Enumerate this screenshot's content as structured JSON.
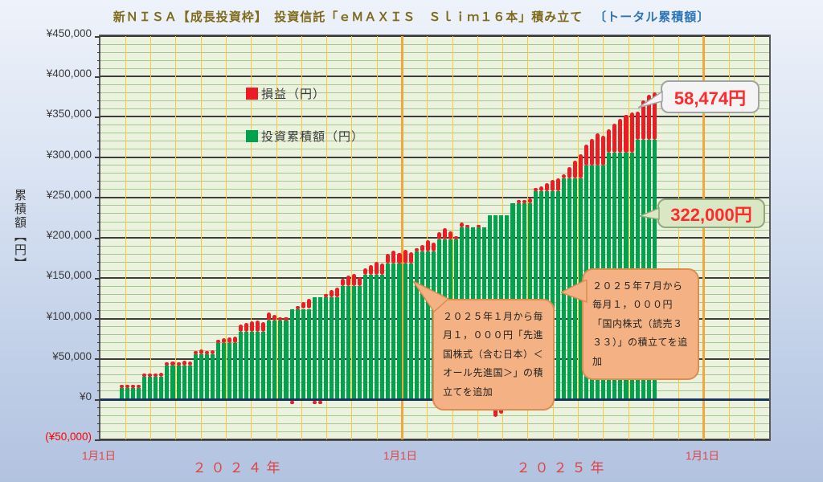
{
  "title": {
    "main": "新ＮＩＳＡ【成長投資枠】　投資信託「ｅＭＡＸＩＳ　Ｓｌｉｍ１６本」積み立て",
    "suffix": "〔トータル累積額〕"
  },
  "y_axis": {
    "title": "累積額【円】",
    "ticks": [
      {
        "v": 450000,
        "label": "¥450,000"
      },
      {
        "v": 400000,
        "label": "¥400,000"
      },
      {
        "v": 350000,
        "label": "¥350,000"
      },
      {
        "v": 300000,
        "label": "¥300,000"
      },
      {
        "v": 250000,
        "label": "¥250,000"
      },
      {
        "v": 200000,
        "label": "¥200,000"
      },
      {
        "v": 150000,
        "label": "¥150,000"
      },
      {
        "v": 100000,
        "label": "¥100,000"
      },
      {
        "v": 50000,
        "label": "¥50,000"
      },
      {
        "v": 0,
        "label": "¥0"
      },
      {
        "v": -50000,
        "label": "(¥50,000)",
        "negative": true
      }
    ],
    "max": 450000,
    "min": -50000,
    "major_step": 50000,
    "minor_step": 10000
  },
  "x_axis": {
    "jan1_labels": [
      "1月1日",
      "1月1日",
      "1月1日"
    ],
    "year_labels": [
      "２０２４年",
      "２０２５年"
    ]
  },
  "legend": {
    "items": [
      {
        "label": "損益（円）",
        "color": "#ea1c24"
      },
      {
        "label": "投資累積額（円）",
        "color": "#00a24d"
      }
    ]
  },
  "callouts": {
    "profit_value": "58,474円",
    "invested_value": "322,000円",
    "note_jan2025": "２０２５年１月から毎月１，０００円「先進国株式（含む日本）＜オール先進国＞」の積立てを追加",
    "note_jul2025": "２０２５年７月から毎月１，０００円「国内株式（読売３３３）」の積立てを追加"
  },
  "colors": {
    "profit": "#ea1c24",
    "invested": "#00a24d",
    "plot_bg": "#ebf2de",
    "minor_grid": "#a6c496",
    "major_grid": "#3d3d3d",
    "month_grid": "#ffc932",
    "zero_line": "#17365d",
    "axis_label_red": "#e04444"
  },
  "chart_data": {
    "type": "bar",
    "stacked": true,
    "period": "weekly, 2024-01 through 2025-10",
    "series_names": [
      "投資累積額（円）",
      "損益（円）"
    ],
    "final_invested": 322000,
    "final_profit": 58474,
    "final_total": 380474,
    "ylim": [
      -50000,
      450000
    ],
    "months": [
      {
        "label": "2024-01",
        "invested": 14000,
        "weekly_profit": [
          2000,
          3500,
          3000,
          3500
        ]
      },
      {
        "label": "2024-02",
        "invested": 28000,
        "weekly_profit": [
          2500,
          4000,
          3000,
          4500
        ]
      },
      {
        "label": "2024-03",
        "invested": 42000,
        "weekly_profit": [
          3000,
          5000,
          4000,
          5500,
          4500
        ]
      },
      {
        "label": "2024-04",
        "invested": 56000,
        "weekly_profit": [
          4000,
          6000,
          3500,
          5000
        ]
      },
      {
        "label": "2024-05",
        "invested": 70000,
        "weekly_profit": [
          3500,
          5500,
          7000,
          8000
        ]
      },
      {
        "label": "2024-06",
        "invested": 84000,
        "weekly_profit": [
          9000,
          11000,
          13000,
          14000,
          12000
        ]
      },
      {
        "label": "2024-07",
        "invested": 98000,
        "weekly_profit": [
          10000,
          7000,
          4000,
          1500
        ]
      },
      {
        "label": "2024-08",
        "invested": 112000,
        "weekly_profit": [
          -2500,
          3000,
          8000,
          12000
        ]
      },
      {
        "label": "2024-09",
        "invested": 126000,
        "weekly_profit": [
          -2000,
          -3500,
          4000,
          9000,
          12000
        ]
      },
      {
        "label": "2024-10",
        "invested": 140000,
        "weekly_profit": [
          9000,
          13000,
          15000,
          11000
        ]
      },
      {
        "label": "2024-11",
        "invested": 154000,
        "weekly_profit": [
          8000,
          12000,
          16000,
          14000
        ]
      },
      {
        "label": "2024-12",
        "invested": 168000,
        "weekly_profit": [
          12000,
          16000,
          13000,
          17000,
          14000
        ]
      },
      {
        "label": "2025-01",
        "invested": 183000,
        "weekly_profit": [
          4000,
          8000,
          14000,
          11000
        ]
      },
      {
        "label": "2025-02",
        "invested": 198000,
        "weekly_profit": [
          9000,
          14000,
          10000,
          4000
        ]
      },
      {
        "label": "2025-03",
        "invested": 213000,
        "weekly_profit": [
          6000,
          3000,
          -1500,
          2000,
          -2500
        ]
      },
      {
        "label": "2025-04",
        "invested": 228000,
        "weekly_profit": [
          -8000,
          -20000,
          -16000,
          -7000
        ]
      },
      {
        "label": "2025-05",
        "invested": 243000,
        "weekly_profit": [
          -4000,
          1000,
          3000,
          6000
        ]
      },
      {
        "label": "2025-06",
        "invested": 258000,
        "weekly_profit": [
          2000,
          6000,
          10000,
          14000,
          16000
        ]
      },
      {
        "label": "2025-07",
        "invested": 274000,
        "weekly_profit": [
          5000,
          14000,
          22000,
          30000
        ]
      },
      {
        "label": "2025-08",
        "invested": 290000,
        "weekly_profit": [
          26000,
          33000,
          40000,
          37000
        ]
      },
      {
        "label": "2025-09",
        "invested": 306000,
        "weekly_profit": [
          29000,
          35000,
          41000,
          46000,
          49000
        ]
      },
      {
        "label": "2025-10",
        "invested": 322000,
        "weekly_profit": [
          34000,
          48000,
          55000,
          58474
        ]
      }
    ],
    "annotations": [
      "2025年1月から毎月1,000円「先進国株式（含む日本）＜オール先進国＞」の積立てを追加",
      "2025年7月から毎月1,000円「国内株式（読売333）」の積立てを追加"
    ]
  }
}
